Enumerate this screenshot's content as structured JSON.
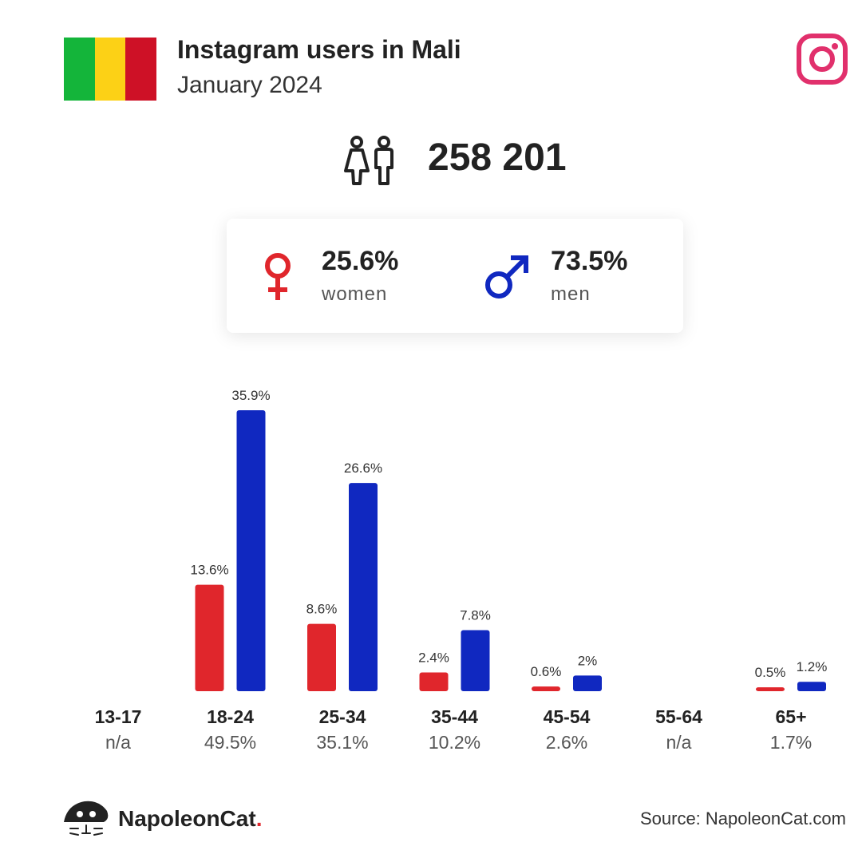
{
  "header": {
    "title": "Instagram users in Mali",
    "subtitle": "January 2024",
    "flag_colors": [
      "#14b53a",
      "#fcd116",
      "#ce1126"
    ]
  },
  "total": {
    "value": "258 201",
    "icon": "users-icon"
  },
  "gender": {
    "women": {
      "value": "25.6%",
      "label": "women",
      "icon": "female-symbol-icon",
      "color": "#e0262c"
    },
    "men": {
      "value": "73.5%",
      "label": "men",
      "icon": "male-symbol-icon",
      "color": "#1028c0"
    }
  },
  "chart_data": {
    "type": "bar",
    "categories": [
      "13-17",
      "18-24",
      "25-34",
      "35-44",
      "45-54",
      "55-64",
      "65+"
    ],
    "group_totals": [
      "n/a",
      "49.5%",
      "35.1%",
      "10.2%",
      "2.6%",
      "n/a",
      "1.7%"
    ],
    "series": [
      {
        "color": "#e0262c",
        "values": [
          null,
          13.6,
          8.6,
          2.4,
          0.6,
          null,
          0.5
        ],
        "labels": [
          "",
          "13.6%",
          "8.6%",
          "2.4%",
          "0.6%",
          "",
          "0.5%"
        ]
      },
      {
        "color": "#1028c0",
        "values": [
          null,
          35.9,
          26.6,
          7.8,
          2.0,
          null,
          1.2
        ],
        "labels": [
          "",
          "35.9%",
          "26.6%",
          "7.8%",
          "2%",
          "",
          "1.2%"
        ]
      }
    ],
    "ylim": [
      0,
      35.9
    ]
  },
  "footer": {
    "brand": "NapoleonCat",
    "brand_dot": ".",
    "source": "Source: NapoleonCat.com"
  },
  "colors": {
    "instagram": "#e1306c",
    "text": "#222222"
  }
}
